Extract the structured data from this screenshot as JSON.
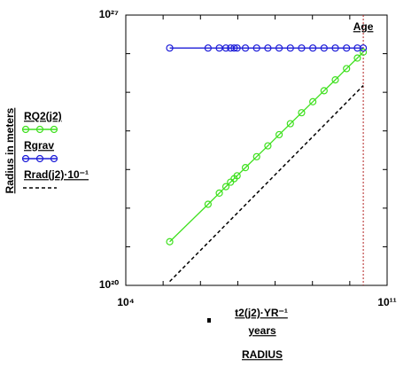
{
  "chart_data": {
    "type": "line",
    "title": "RADIUS",
    "x_label": "t2(j2)·YR⁻¹",
    "x_unit_label": "years",
    "y_label": "Radius in meters",
    "log_x": true,
    "log_y": true,
    "xlim": [
      10000,
      100000000000
    ],
    "ylim": [
      1e+20,
      1e+27
    ],
    "xticks": [
      {
        "value": 10000,
        "label": "10⁴"
      },
      {
        "value": 100000000000,
        "label": "10¹¹"
      }
    ],
    "yticks": [
      {
        "value": 1e+20,
        "label": "10²⁰"
      },
      {
        "value": 1e+27,
        "label": "10²⁷"
      }
    ],
    "xminorticks": [
      100000,
      1000000,
      10000000,
      100000000,
      1000000000,
      10000000000
    ],
    "yminorticks": [
      1e+21,
      1e+22,
      1e+23,
      1e+24,
      1e+25,
      1e+26
    ],
    "annotation": {
      "text": "Age",
      "x": 23000000000,
      "color": "#b22222"
    },
    "series": [
      {
        "name": "RQ2(j2)",
        "color": "#3ee01e",
        "marker": true,
        "dashed": false,
        "x": [
          150000,
          1600000,
          3200000,
          4800000,
          6400000,
          8000000,
          9600000,
          16000000,
          32000000,
          64000000,
          128000000,
          256000000,
          512000000,
          1024000000,
          2048000000,
          4096000000,
          8192000000,
          16000000000,
          23000000000
        ],
        "values": [
          1.35e+21,
          1.26e+22,
          2.45e+22,
          3.6e+22,
          4.7e+22,
          5.8e+22,
          6.9e+22,
          1.12e+23,
          2.15e+23,
          4.1e+23,
          8e+23,
          1.54e+24,
          2.96e+24,
          5.7e+24,
          1.1e+25,
          2.1e+25,
          4.1e+25,
          7.7e+25,
          1.1e+26
        ]
      },
      {
        "name": "Rgrav",
        "color": "#1c1cd8",
        "marker": true,
        "dashed": false,
        "x": [
          150000,
          1600000,
          3200000,
          4800000,
          6400000,
          8000000,
          9600000,
          16000000,
          32000000,
          64000000,
          128000000,
          256000000,
          512000000,
          1024000000,
          2048000000,
          4096000000,
          8192000000,
          16000000000,
          23000000000
        ],
        "values": [
          1.4e+26,
          1.4e+26,
          1.4e+26,
          1.4e+26,
          1.4e+26,
          1.4e+26,
          1.4e+26,
          1.4e+26,
          1.4e+26,
          1.4e+26,
          1.4e+26,
          1.4e+26,
          1.4e+26,
          1.4e+26,
          1.4e+26,
          1.4e+26,
          1.4e+26,
          1.4e+26,
          1.4e+26
        ]
      },
      {
        "name": "Rrad(j2)·10⁻¹",
        "color": "#000000",
        "marker": false,
        "dashed": true,
        "x": [
          150000,
          23000000000
        ],
        "values": [
          1.26e+20,
          1.5e+25
        ]
      }
    ]
  }
}
